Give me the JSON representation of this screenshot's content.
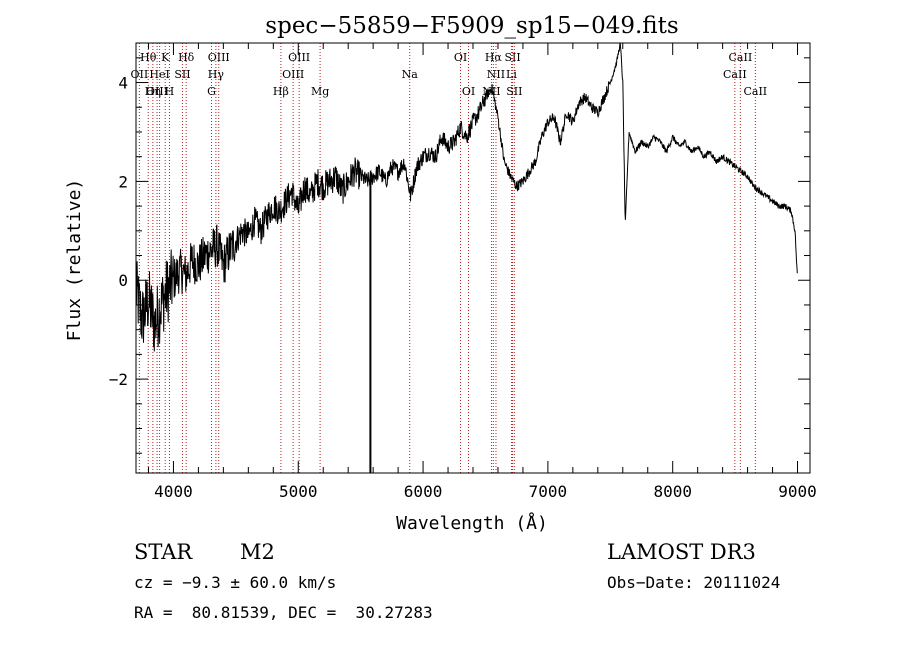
{
  "chart_data": {
    "type": "line",
    "title": "spec−55859−F5909_sp15−049.fits",
    "xlabel": "Wavelength (Å)",
    "ylabel": "Flux (relative)",
    "xlim": [
      3700,
      9100
    ],
    "ylim": [
      -3.9,
      4.8
    ],
    "xticks": [
      4000,
      5000,
      6000,
      7000,
      8000,
      9000
    ],
    "yticks": [
      -2,
      0,
      2,
      4
    ],
    "ytick_labels": [
      "−2",
      "0",
      "2",
      "4"
    ],
    "series": [
      {
        "name": "flux",
        "x": [
          3700,
          3750,
          3800,
          3850,
          3900,
          3950,
          4000,
          4050,
          4100,
          4150,
          4200,
          4250,
          4300,
          4350,
          4400,
          4450,
          4500,
          4550,
          4600,
          4650,
          4700,
          4750,
          4800,
          4850,
          4900,
          4950,
          5000,
          5050,
          5100,
          5150,
          5200,
          5250,
          5300,
          5350,
          5400,
          5450,
          5500,
          5550,
          5600,
          5650,
          5700,
          5750,
          5800,
          5850,
          5900,
          5950,
          6000,
          6050,
          6100,
          6150,
          6200,
          6250,
          6300,
          6350,
          6400,
          6450,
          6500,
          6550,
          6600,
          6650,
          6700,
          6750,
          6800,
          6850,
          6900,
          6950,
          7000,
          7050,
          7100,
          7150,
          7200,
          7250,
          7300,
          7350,
          7400,
          7450,
          7500,
          7550,
          7580,
          7600,
          7620,
          7650,
          7700,
          7750,
          7800,
          7850,
          7900,
          7950,
          8000,
          8050,
          8100,
          8150,
          8200,
          8250,
          8300,
          8350,
          8400,
          8450,
          8500,
          8550,
          8600,
          8650,
          8700,
          8750,
          8800,
          8850,
          8900,
          8950,
          8980,
          9000
        ],
        "y": [
          -0.2,
          -0.8,
          -0.4,
          -0.9,
          -0.5,
          -0.2,
          0.0,
          0.2,
          0.1,
          0.4,
          0.3,
          0.5,
          0.6,
          0.7,
          0.3,
          0.6,
          0.8,
          1.0,
          0.9,
          1.2,
          1.0,
          1.3,
          1.5,
          1.4,
          1.6,
          1.8,
          1.4,
          1.9,
          1.7,
          2.0,
          1.9,
          2.0,
          2.1,
          1.8,
          2.0,
          2.2,
          2.1,
          2.0,
          2.1,
          2.2,
          2.0,
          2.3,
          2.2,
          2.4,
          1.7,
          2.3,
          2.5,
          2.6,
          2.5,
          2.9,
          2.7,
          2.8,
          3.1,
          2.9,
          3.2,
          3.4,
          3.7,
          3.9,
          3.3,
          2.4,
          2.1,
          1.9,
          2.0,
          2.2,
          2.4,
          2.9,
          3.2,
          3.3,
          2.8,
          3.4,
          3.2,
          3.6,
          3.7,
          3.5,
          3.4,
          3.7,
          4.0,
          4.4,
          4.8,
          4.0,
          1.1,
          3.0,
          2.6,
          2.8,
          2.7,
          2.9,
          2.8,
          2.6,
          2.9,
          2.7,
          2.8,
          2.6,
          2.7,
          2.5,
          2.6,
          2.4,
          2.5,
          2.4,
          2.3,
          2.2,
          2.1,
          1.9,
          1.8,
          1.7,
          1.6,
          1.5,
          1.5,
          1.4,
          1.0,
          0.0
        ]
      }
    ],
    "vertical_marker": 5578,
    "line_marks": [
      {
        "label": "Hθ",
        "x": 3798,
        "row": 0
      },
      {
        "label": "K",
        "x": 3934,
        "row": 0
      },
      {
        "label": "Hδ",
        "x": 4102,
        "row": 0
      },
      {
        "label": "OIII",
        "x": 4363,
        "row": 0
      },
      {
        "label": "OIII",
        "x": 5007,
        "row": 0
      },
      {
        "label": "OI",
        "x": 6300,
        "row": 0
      },
      {
        "label": "Hα",
        "x": 6563,
        "row": 0
      },
      {
        "label": "SII",
        "x": 6717,
        "row": 0
      },
      {
        "label": "CaII",
        "x": 8542,
        "row": 0
      },
      {
        "label": "OII",
        "x": 3727,
        "row": 1
      },
      {
        "label": "HeI",
        "x": 3889,
        "row": 1
      },
      {
        "label": "SII",
        "x": 4072,
        "row": 1
      },
      {
        "label": "Hγ",
        "x": 4340,
        "row": 1
      },
      {
        "label": "OIII",
        "x": 4959,
        "row": 1
      },
      {
        "label": "Na",
        "x": 5893,
        "row": 1
      },
      {
        "label": "NII",
        "x": 6584,
        "row": 1
      },
      {
        "label": "Li",
        "x": 6708,
        "row": 1
      },
      {
        "label": "CaII",
        "x": 8498,
        "row": 1
      },
      {
        "label": "OIII",
        "x": 3869,
        "row": 2
      },
      {
        "label": "Hη",
        "x": 3835,
        "row": 2
      },
      {
        "label": "H",
        "x": 3968,
        "row": 2
      },
      {
        "label": "G",
        "x": 4305,
        "row": 2
      },
      {
        "label": "Hβ",
        "x": 4861,
        "row": 2
      },
      {
        "label": "Mg",
        "x": 5175,
        "row": 2
      },
      {
        "label": "OI",
        "x": 6364,
        "row": 2
      },
      {
        "label": "NII",
        "x": 6548,
        "row": 2
      },
      {
        "label": "SII",
        "x": 6731,
        "row": 2
      },
      {
        "label": "CaII",
        "x": 8662,
        "row": 2
      }
    ]
  },
  "info": {
    "class": "STAR",
    "subclass": "M2",
    "survey": "LAMOST DR3",
    "cz": "cz = −9.3 ± 60.0 km/s",
    "obs_date": "Obs−Date: 20111024",
    "coords": "RA =  80.81539, DEC =  30.27283"
  }
}
